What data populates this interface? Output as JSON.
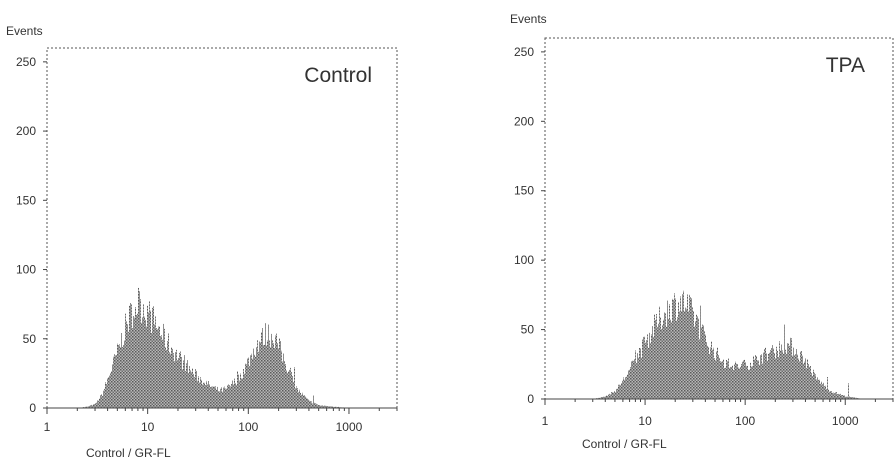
{
  "chart_data": [
    {
      "type": "histogram",
      "panel_label": "Control",
      "ylabel": "Events",
      "xlabel": "Control / GR-FL",
      "x_scale": "log",
      "xlim": [
        1,
        3000
      ],
      "ylim": [
        0,
        260
      ],
      "x_ticks": [
        1,
        10,
        100,
        1000
      ],
      "x_tick_labels": [
        "1",
        "10",
        "100",
        "1000"
      ],
      "y_ticks": [
        0,
        50,
        100,
        150,
        200,
        250
      ],
      "y_tick_labels": [
        "0",
        "50",
        "100",
        "150",
        "200",
        "250"
      ],
      "peaks": [
        {
          "center": 8.5,
          "height": 78
        },
        {
          "center": 160,
          "height": 55
        }
      ],
      "x": [
        2,
        2.5,
        3,
        3.5,
        4,
        5,
        6,
        7,
        8,
        9,
        10,
        12,
        15,
        20,
        25,
        30,
        40,
        50,
        60,
        80,
        100,
        120,
        150,
        180,
        200,
        250,
        300,
        400,
        500,
        700,
        1000
      ],
      "values": [
        0,
        1,
        3,
        10,
        22,
        42,
        60,
        72,
        78,
        75,
        70,
        62,
        50,
        38,
        30,
        24,
        17,
        13,
        14,
        22,
        35,
        47,
        55,
        53,
        45,
        28,
        14,
        5,
        2,
        1,
        0
      ]
    },
    {
      "type": "histogram",
      "panel_label": "TPA",
      "ylabel": "Events",
      "xlabel": "Control / GR-FL",
      "x_scale": "log",
      "xlim": [
        1,
        3000
      ],
      "ylim": [
        0,
        260
      ],
      "x_ticks": [
        1,
        10,
        100,
        1000
      ],
      "x_tick_labels": [
        "1",
        "10",
        "100",
        "1000"
      ],
      "y_ticks": [
        0,
        50,
        100,
        150,
        200,
        250
      ],
      "y_tick_labels": [
        "0",
        "50",
        "100",
        "150",
        "200",
        "250"
      ],
      "peaks": [
        {
          "center": 22,
          "height": 72
        },
        {
          "center": 270,
          "height": 40
        }
      ],
      "x": [
        3,
        4,
        5,
        6,
        7,
        8,
        10,
        12,
        15,
        18,
        20,
        22,
        25,
        30,
        35,
        40,
        50,
        60,
        70,
        80,
        100,
        120,
        150,
        200,
        250,
        300,
        400,
        500,
        700,
        1000,
        1500
      ],
      "values": [
        0,
        2,
        6,
        14,
        22,
        30,
        42,
        52,
        62,
        68,
        70,
        72,
        70,
        62,
        52,
        44,
        34,
        28,
        25,
        24,
        25,
        28,
        32,
        36,
        40,
        38,
        28,
        16,
        6,
        2,
        0
      ]
    }
  ]
}
